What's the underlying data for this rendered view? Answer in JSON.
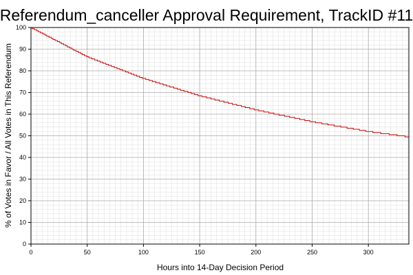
{
  "chart_data": {
    "type": "line",
    "title": "Referendum_canceller Approval Requirement, TrackID #11",
    "xlabel": "Hours into 14-Day Decision Period",
    "ylabel": "% of Votes in Favor / All Votes in This Referendum",
    "xlim": [
      0,
      336
    ],
    "ylim": [
      0,
      100
    ],
    "x_ticks": [
      0,
      50,
      100,
      150,
      200,
      250,
      300
    ],
    "y_ticks": [
      0,
      10,
      20,
      30,
      40,
      50,
      60,
      70,
      80,
      90,
      100
    ],
    "grid": true,
    "series": [
      {
        "color": "#cc0000",
        "step": true,
        "x": [
          0,
          50,
          100,
          150,
          200,
          250,
          300,
          336
        ],
        "y": [
          100,
          86.5,
          76.5,
          68.5,
          62,
          56.5,
          52,
          49.5
        ]
      }
    ]
  }
}
